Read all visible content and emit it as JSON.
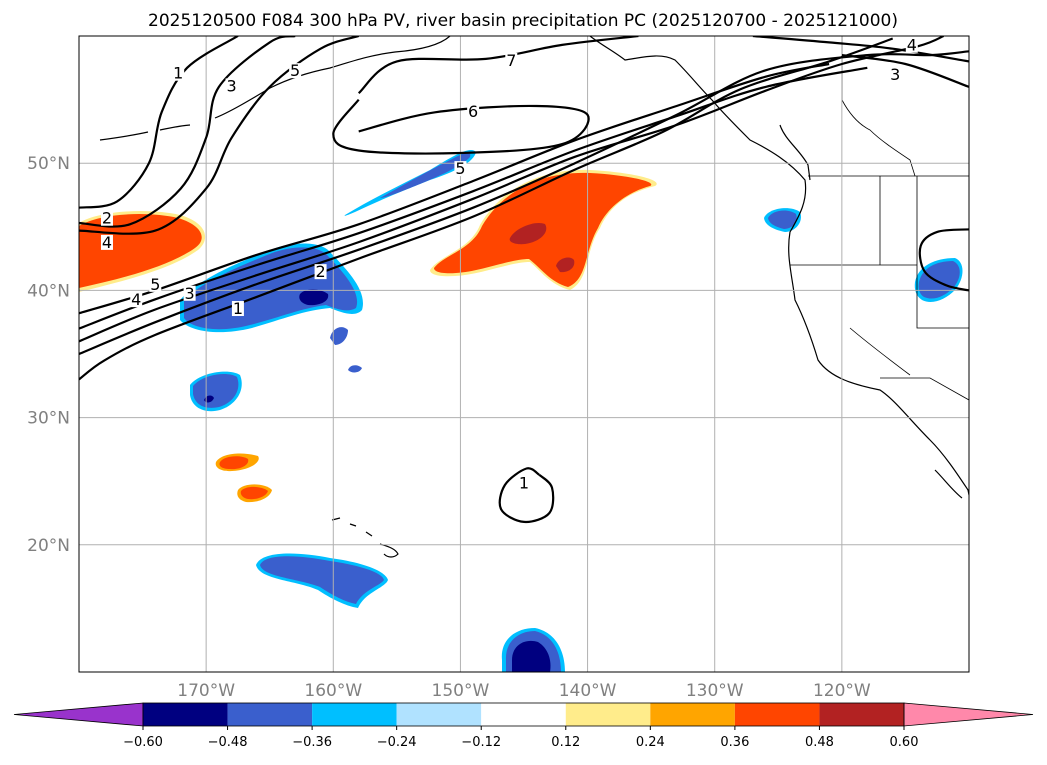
{
  "title": "2025120500 F084 300 hPa PV, river basin precipitation PC (2025120700 - 2025121000)",
  "map": {
    "lon_range": [
      -180,
      -110
    ],
    "lat_range": [
      10,
      60
    ],
    "lon_ticks": [
      {
        "lon": -170,
        "label": "170°W"
      },
      {
        "lon": -160,
        "label": "160°W"
      },
      {
        "lon": -150,
        "label": "150°W"
      },
      {
        "lon": -140,
        "label": "140°W"
      },
      {
        "lon": -130,
        "label": "130°W"
      },
      {
        "lon": -120,
        "label": "120°W"
      }
    ],
    "lat_ticks": [
      {
        "lat": 50,
        "label": "50°N"
      },
      {
        "lat": 40,
        "label": "40°N"
      },
      {
        "lat": 30,
        "label": "30°N"
      },
      {
        "lat": 20,
        "label": "20°N"
      }
    ],
    "contour_labels": [
      {
        "text": "1",
        "lon": -172.2,
        "lat": 56.8
      },
      {
        "text": "3",
        "lon": -168.0,
        "lat": 55.8
      },
      {
        "text": "5",
        "lon": -163.0,
        "lat": 57.0
      },
      {
        "text": "7",
        "lon": -146.0,
        "lat": 57.8
      },
      {
        "text": "6",
        "lon": -149.0,
        "lat": 53.8
      },
      {
        "text": "4",
        "lon": -114.5,
        "lat": 59.0
      },
      {
        "text": "3",
        "lon": -115.8,
        "lat": 56.7
      },
      {
        "text": "5",
        "lon": -150.0,
        "lat": 49.3
      },
      {
        "text": "2",
        "lon": -177.8,
        "lat": 45.4
      },
      {
        "text": "4",
        "lon": -177.8,
        "lat": 43.5
      },
      {
        "text": "5",
        "lon": -174.0,
        "lat": 40.2
      },
      {
        "text": "4",
        "lon": -175.5,
        "lat": 39.0
      },
      {
        "text": "3",
        "lon": -171.3,
        "lat": 39.5
      },
      {
        "text": "2",
        "lon": -161.0,
        "lat": 41.2
      },
      {
        "text": "1",
        "lon": -167.5,
        "lat": 38.3
      },
      {
        "text": "1",
        "lon": -145.0,
        "lat": 24.6
      }
    ],
    "pv_contours": [
      {
        "level": 1,
        "points": [
          [
            -180,
            46.5
          ],
          [
            -177,
            47
          ],
          [
            -174.5,
            50
          ],
          [
            -173.5,
            54
          ],
          [
            -171.5,
            57.5
          ],
          [
            -167.5,
            60
          ]
        ]
      },
      {
        "level": 3,
        "points": [
          [
            -180,
            45.3
          ],
          [
            -176,
            45.2
          ],
          [
            -172,
            48
          ],
          [
            -170,
            52
          ],
          [
            -169,
            56
          ],
          [
            -165,
            59.5
          ],
          [
            -163,
            60
          ]
        ]
      },
      {
        "level": 5,
        "points": [
          [
            -180,
            44.7
          ],
          [
            -174,
            44.7
          ],
          [
            -170,
            48
          ],
          [
            -168,
            52
          ],
          [
            -165,
            56
          ],
          [
            -161,
            59
          ],
          [
            -158,
            60
          ]
        ]
      },
      {
        "level": 7,
        "points": [
          [
            -158,
            55.5
          ],
          [
            -155,
            58
          ],
          [
            -148,
            58.2
          ],
          [
            -142,
            59.3
          ],
          [
            -136,
            60
          ]
        ]
      },
      {
        "level": 6,
        "points": [
          [
            -158,
            52.5
          ],
          [
            -152,
            54
          ],
          [
            -144,
            54.5
          ],
          [
            -140,
            53.8
          ],
          [
            -142,
            51.5
          ],
          [
            -150,
            50.8
          ],
          [
            -158,
            51
          ],
          [
            -160,
            52.3
          ],
          [
            -158,
            55
          ]
        ]
      },
      {
        "level": 5,
        "points": [
          [
            -180,
            38.2
          ],
          [
            -174,
            40
          ],
          [
            -166,
            42.8
          ],
          [
            -158,
            45.2
          ],
          [
            -149,
            48.6
          ],
          [
            -141,
            51.8
          ],
          [
            -133,
            54.5
          ],
          [
            -126,
            56.8
          ],
          [
            -121,
            57.8
          ]
        ]
      },
      {
        "level": 4,
        "points": [
          [
            -180,
            37
          ],
          [
            -174,
            39.3
          ],
          [
            -166,
            42
          ],
          [
            -158,
            44.5
          ],
          [
            -149,
            47.8
          ],
          [
            -141,
            51
          ],
          [
            -133,
            53.7
          ],
          [
            -126,
            56
          ],
          [
            -118,
            57.5
          ]
        ]
      },
      {
        "level": 3,
        "points": [
          [
            -180,
            36
          ],
          [
            -174,
            38.5
          ],
          [
            -166,
            41.2
          ],
          [
            -158,
            43.8
          ],
          [
            -149,
            47.2
          ],
          [
            -141,
            50.5
          ],
          [
            -133,
            53
          ],
          [
            -126,
            55.7
          ],
          [
            -120,
            57.8
          ],
          [
            -114,
            59.2
          ],
          [
            -112,
            60
          ]
        ]
      },
      {
        "level": 2,
        "points": [
          [
            -180,
            35
          ],
          [
            -174,
            37.5
          ],
          [
            -166,
            40.5
          ],
          [
            -158,
            43.2
          ],
          [
            -149,
            46.5
          ],
          [
            -141,
            50
          ],
          [
            -133,
            53.8
          ],
          [
            -126,
            57.3
          ],
          [
            -118,
            58.5
          ],
          [
            -113,
            58.5
          ],
          [
            -110,
            58.8
          ]
        ]
      },
      {
        "level": 1,
        "points": [
          [
            -180,
            33
          ],
          [
            -178,
            34.5
          ],
          [
            -174,
            36.5
          ],
          [
            -166,
            39.5
          ],
          [
            -158,
            42.5
          ],
          [
            -149,
            45.8
          ],
          [
            -141,
            49.5
          ],
          [
            -134,
            52.5
          ],
          [
            -128,
            55.8
          ],
          [
            -121,
            58
          ],
          [
            -116,
            59.8
          ]
        ]
      },
      {
        "level": 4,
        "points": [
          [
            -127,
            60
          ],
          [
            -121,
            59.5
          ],
          [
            -116,
            59
          ],
          [
            -110,
            58
          ]
        ]
      },
      {
        "level": 3,
        "points": [
          [
            -120,
            58.5
          ],
          [
            -115,
            57.8
          ],
          [
            -110,
            56
          ]
        ]
      },
      {
        "level": 1,
        "points": [
          [
            -143.8,
            25.5
          ],
          [
            -142.8,
            24.5
          ],
          [
            -143,
            22.5
          ],
          [
            -145,
            21.8
          ],
          [
            -146.8,
            22.8
          ],
          [
            -146.5,
            24.7
          ],
          [
            -144.8,
            26
          ],
          [
            -143.8,
            25.5
          ]
        ]
      },
      {
        "level": 1,
        "points": [
          [
            -110,
            44.8
          ],
          [
            -112.5,
            44.6
          ],
          [
            -113.8,
            43.5
          ],
          [
            -113.5,
            41.5
          ],
          [
            -111.8,
            40.4
          ],
          [
            -110,
            40
          ]
        ]
      }
    ]
  },
  "colorbar": {
    "colors": [
      "#9933cc",
      "#000080",
      "#3a5fcd",
      "#00bfff",
      "#b0e2ff",
      "#ffffff",
      "#ffec8b",
      "#ffa500",
      "#ff4500",
      "#b22222",
      "#ff88aa"
    ],
    "tick_labels": [
      "−0.60",
      "−0.48",
      "−0.36",
      "−0.24",
      "−0.12",
      "0.12",
      "0.24",
      "0.36",
      "0.48",
      "0.60"
    ]
  }
}
